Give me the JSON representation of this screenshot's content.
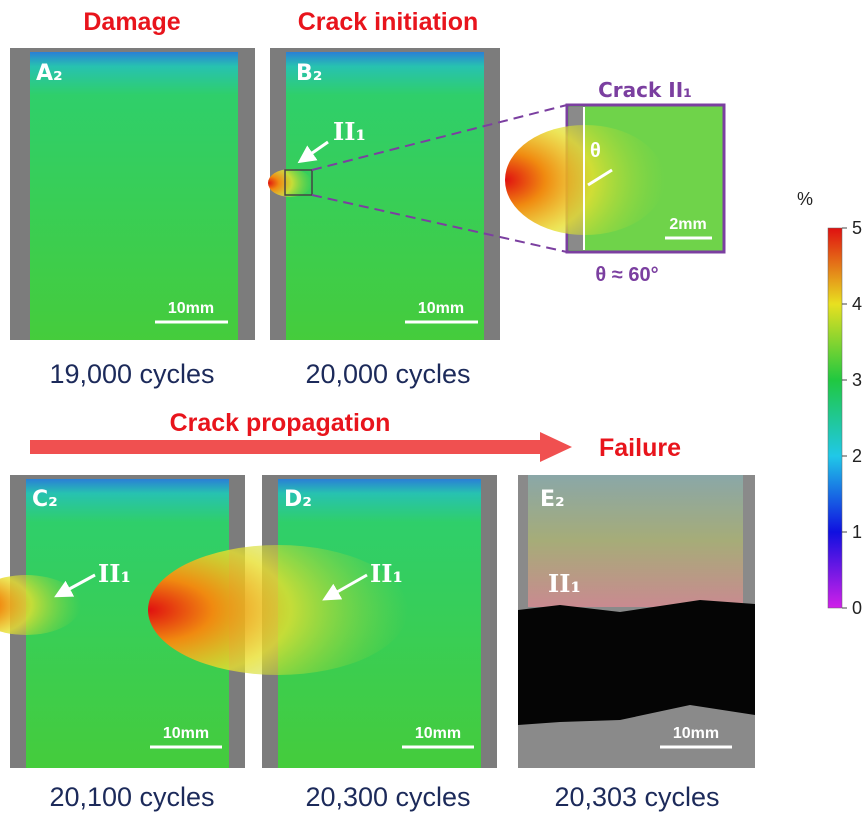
{
  "titles": {
    "damage": "Damage",
    "initiation": "Crack initiation",
    "propagation": "Crack propagation",
    "failure": "Failure"
  },
  "panels": [
    {
      "label": "A₂",
      "scale": "10mm",
      "caption": "19,000 cycles"
    },
    {
      "label": "B₂",
      "scale": "10mm",
      "caption": "20,000 cycles",
      "crack": "II₁"
    },
    {
      "label": "C₂",
      "scale": "10mm",
      "caption": "20,100 cycles",
      "crack": "II₁"
    },
    {
      "label": "D₂",
      "scale": "10mm",
      "caption": "20,300 cycles",
      "crack": "II₁"
    },
    {
      "label": "E₂",
      "scale": "10mm",
      "caption": "20,303 cycles",
      "crack": "II₁"
    }
  ],
  "inset": {
    "title": "Crack II₁",
    "angle_symbol": "θ",
    "scale": "2mm",
    "angle_note": "θ ≈ 60°"
  },
  "colorbar": {
    "unit": "%",
    "clim": [
      0,
      5.5
    ],
    "ticks": [
      0,
      1.1,
      2.2,
      3.3,
      4.4,
      5.5
    ]
  }
}
